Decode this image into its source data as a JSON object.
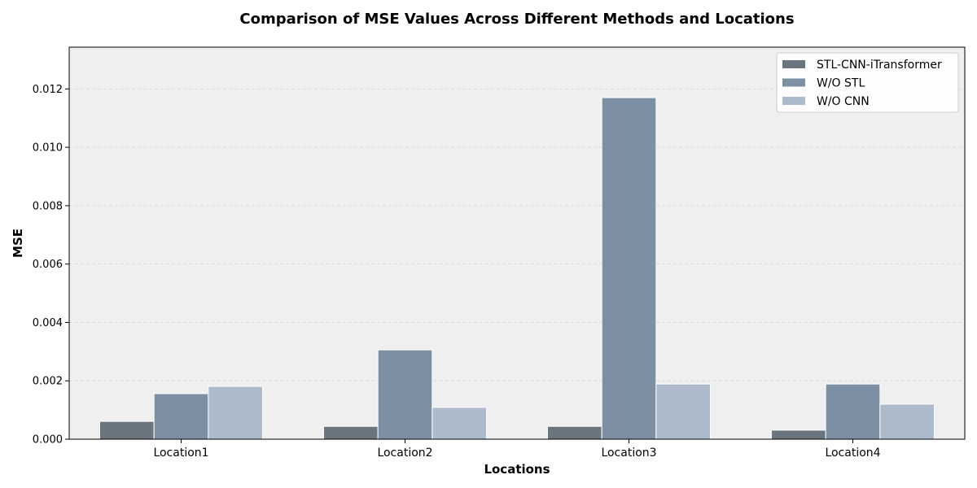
{
  "chart_data": {
    "type": "bar",
    "title": "Comparison of MSE Values Across Different Methods and Locations",
    "xlabel": "Locations",
    "ylabel": "MSE",
    "categories": [
      "Location1",
      "Location2",
      "Location3",
      "Location4"
    ],
    "series": [
      {
        "name": "STL-CNN-iTransformer",
        "color": "#6b7580",
        "values": [
          0.00061,
          0.00044,
          0.00044,
          0.00031
        ]
      },
      {
        "name": "W/O STL",
        "color": "#7d8fa3",
        "values": [
          0.00156,
          0.00306,
          0.0117,
          0.00189
        ]
      },
      {
        "name": "W/O CNN",
        "color": "#adbacc",
        "values": [
          0.00181,
          0.00109,
          0.00189,
          0.0012
        ]
      }
    ],
    "ylim": [
      0,
      0.01343
    ],
    "yticks": [
      "0.000",
      "0.002",
      "0.004",
      "0.006",
      "0.008",
      "0.010",
      "0.012"
    ],
    "ytick_values": [
      0,
      0.002,
      0.004,
      0.006,
      0.008,
      0.01,
      0.012
    ],
    "grid": "y dashed",
    "legend_position": "top-right",
    "plot_background": "#efefef"
  }
}
